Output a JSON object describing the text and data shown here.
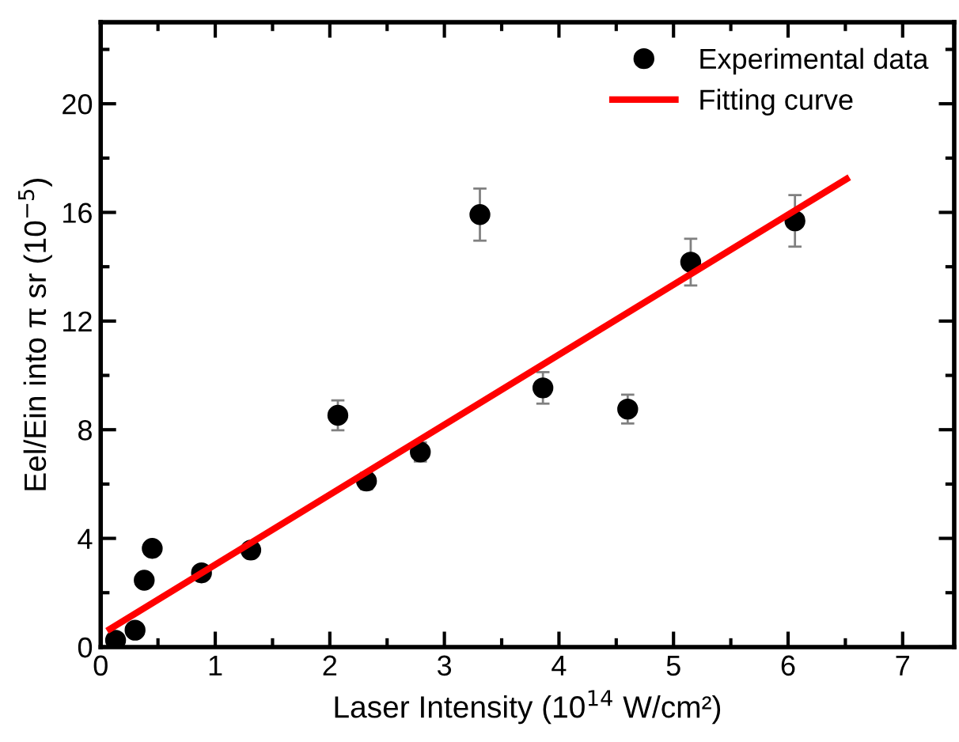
{
  "chart_data": {
    "type": "scatter",
    "xlabel": "Laser Intensity (10$^{14}$ W/cm²)",
    "ylabel": "Eel/Ein into π sr (10$^{−5}$)",
    "xlim": [
      0,
      7.45
    ],
    "ylim": [
      0,
      23
    ],
    "xticks": [
      0,
      {
        "value": 0.5,
        "label": null
      },
      1,
      {
        "value": 1.5,
        "label": null
      },
      2,
      {
        "value": 2.5,
        "label": null
      },
      3,
      {
        "value": 3.5,
        "label": null
      },
      4,
      {
        "value": 4.5,
        "label": null
      },
      5,
      {
        "value": 5.5,
        "label": null
      },
      6,
      {
        "value": 6.5,
        "label": null
      },
      7
    ],
    "yticks": [
      0,
      {
        "value": 2,
        "label": null
      },
      4,
      {
        "value": 6,
        "label": null
      },
      8,
      {
        "value": 10,
        "label": null
      },
      12,
      {
        "value": 14,
        "label": null
      },
      16,
      {
        "value": 18,
        "label": null
      },
      20,
      {
        "value": 22,
        "label": null
      }
    ],
    "legend": "top right",
    "grid": false,
    "series": [
      {
        "name": "Experimental data",
        "color": "#000000",
        "marker": "circle",
        "x": [
          0.13,
          0.3,
          0.38,
          0.45,
          0.88,
          1.31,
          2.07,
          2.32,
          2.79,
          3.31,
          3.86,
          4.6,
          5.15,
          6.06
        ],
        "values": [
          0.25,
          0.62,
          2.46,
          3.63,
          2.73,
          3.57,
          8.53,
          6.11,
          7.18,
          15.92,
          9.54,
          8.76,
          14.17,
          15.69
        ],
        "errors": [
          null,
          null,
          null,
          null,
          null,
          null,
          0.55,
          0.3,
          0.35,
          0.96,
          0.58,
          0.53,
          0.86,
          0.95
        ]
      },
      {
        "name": "Fitting curve",
        "type": "line",
        "color": "#ff0000",
        "line_style": "solid",
        "x": [
          0.08,
          6.51
        ],
        "values": [
          0.66,
          17.23
        ]
      }
    ]
  }
}
